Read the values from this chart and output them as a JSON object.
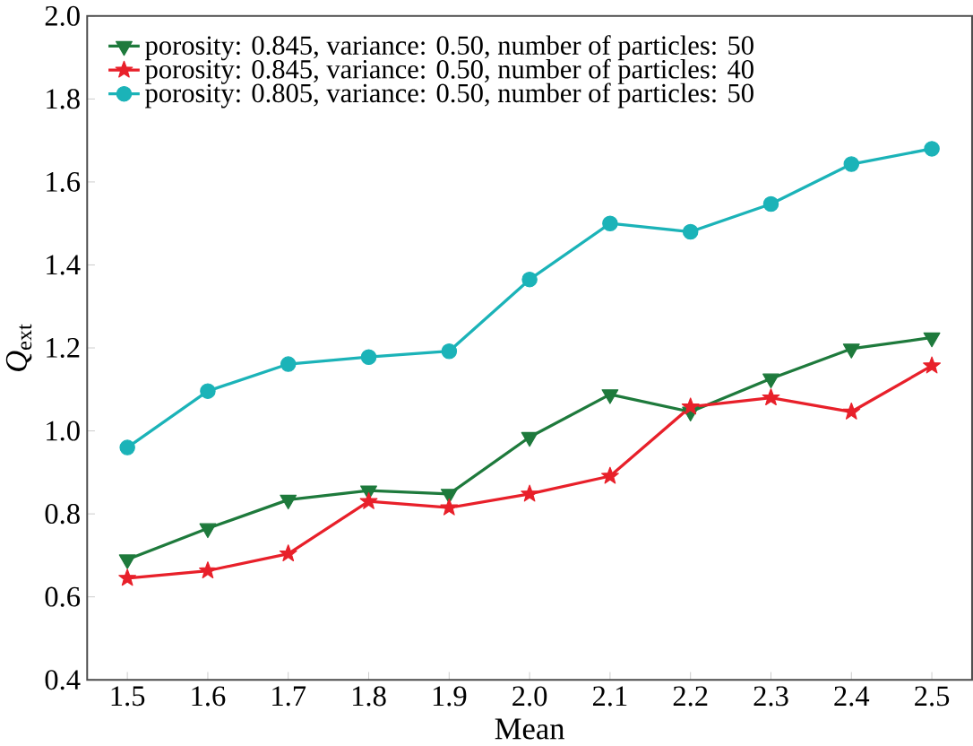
{
  "chart_data": {
    "type": "line",
    "xlabel": "Mean",
    "ylabel": "*Q*$_{ext}$",
    "x": [
      1.5,
      1.6,
      1.7,
      1.8,
      1.9,
      2.0,
      2.1,
      2.2,
      2.3,
      2.4,
      2.5
    ],
    "xlim": [
      1.45,
      2.55
    ],
    "xticks": [
      {
        "value": 1.5,
        "label": "1.5"
      },
      {
        "value": 1.6,
        "label": "1.6"
      },
      {
        "value": 1.7,
        "label": "1.7"
      },
      {
        "value": 1.8,
        "label": "1.8"
      },
      {
        "value": 1.9,
        "label": "1.9"
      },
      {
        "value": 2.0,
        "label": "2.0"
      },
      {
        "value": 2.1,
        "label": "2.1"
      },
      {
        "value": 2.2,
        "label": "2.2"
      },
      {
        "value": 2.3,
        "label": "2.3"
      },
      {
        "value": 2.4,
        "label": "2.4"
      },
      {
        "value": 2.5,
        "label": "2.5"
      }
    ],
    "ylim": [
      0.4,
      2.0
    ],
    "yticks": [
      {
        "value": 0.4,
        "label": "0.4"
      },
      {
        "value": 0.6,
        "label": "0.6"
      },
      {
        "value": 0.8,
        "label": "0.8"
      },
      {
        "value": 1.0,
        "label": "1.0"
      },
      {
        "value": 1.2,
        "label": "1.2"
      },
      {
        "value": 1.4,
        "label": "1.4"
      },
      {
        "value": 1.6,
        "label": "1.6"
      },
      {
        "value": 1.8,
        "label": "1.8"
      },
      {
        "value": 2.0,
        "label": "2.0"
      }
    ],
    "legend": "top left",
    "grid": false,
    "line_style": "solid",
    "series": [
      {
        "name": "porosity: 0.845, variance: 0.50, number of  particles: 50",
        "color": "#1e7a3c",
        "marker": "triangle",
        "values": [
          0.69,
          0.765,
          0.834,
          0.856,
          0.848,
          0.985,
          1.088,
          1.046,
          1.126,
          1.198,
          1.225
        ]
      },
      {
        "name": "porosity: 0.845, variance: 0.50, number of  particles: 40",
        "color": "#e8202a",
        "marker": "star",
        "values": [
          0.645,
          0.663,
          0.704,
          0.83,
          0.815,
          0.848,
          0.891,
          1.058,
          1.08,
          1.046,
          1.157
        ]
      },
      {
        "name": "porosity: 0.805, variance: 0.50, number of  particles: 50",
        "color": "#1bb3b8",
        "marker": "circle",
        "values": [
          0.96,
          1.096,
          1.161,
          1.178,
          1.192,
          1.365,
          1.5,
          1.48,
          1.547,
          1.643,
          1.68
        ]
      }
    ]
  }
}
